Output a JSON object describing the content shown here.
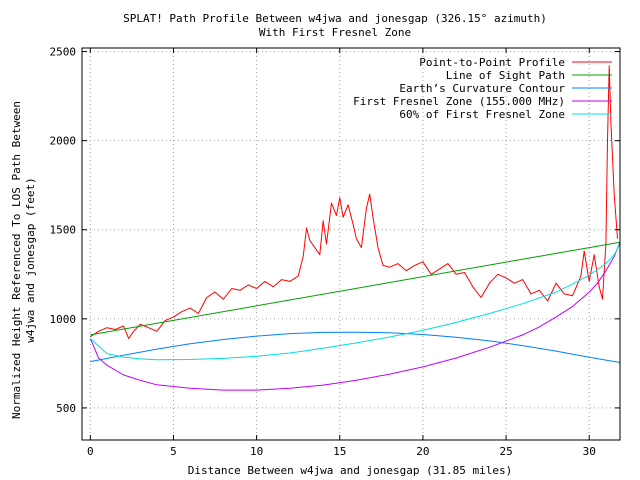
{
  "chart_data": {
    "type": "line",
    "title": "SPLAT! Path Profile Between w4jwa and jonesgap (326.15° azimuth)",
    "subtitle": "With First Fresnel Zone",
    "xlabel": "Distance Between w4jwa and jonesgap (31.85 miles)",
    "ylabel_line1": "Normalized Height Referenced To LOS Path Between",
    "ylabel_line2": "w4jwa and jonesgap (feet)",
    "xlim": [
      -0.5,
      31.85
    ],
    "ylim": [
      320,
      2520
    ],
    "xticks": [
      0,
      5,
      10,
      15,
      20,
      25,
      30
    ],
    "yticks": [
      500,
      1000,
      1500,
      2000,
      2500
    ],
    "grid": true,
    "legend_position": "top-right",
    "series": [
      {
        "name": "Point-to-Point Profile",
        "color": "#ff0000",
        "x": [
          0,
          0.5,
          1,
          1.5,
          2,
          2.3,
          2.6,
          3,
          3.5,
          4,
          4.5,
          5,
          5.5,
          6,
          6.5,
          7,
          7.5,
          8,
          8.5,
          9,
          9.5,
          10,
          10.5,
          11,
          11.5,
          12,
          12.5,
          12.8,
          13,
          13.2,
          13.5,
          13.8,
          14,
          14.2,
          14.5,
          14.8,
          15,
          15.2,
          15.5,
          15.8,
          16,
          16.3,
          16.6,
          16.8,
          17,
          17.3,
          17.6,
          18,
          18.5,
          19,
          19.5,
          20,
          20.5,
          21,
          21.5,
          22,
          22.5,
          23,
          23.5,
          24,
          24.5,
          25,
          25.5,
          26,
          26.5,
          27,
          27.5,
          28,
          28.5,
          29,
          29.5,
          29.7,
          30,
          30.3,
          30.6,
          30.8,
          31,
          31.1,
          31.2,
          31.3,
          31.5,
          31.7
        ],
        "y": [
          900,
          930,
          950,
          940,
          960,
          890,
          930,
          970,
          950,
          930,
          990,
          1010,
          1040,
          1060,
          1030,
          1120,
          1150,
          1110,
          1170,
          1160,
          1190,
          1170,
          1210,
          1180,
          1220,
          1210,
          1240,
          1350,
          1510,
          1440,
          1400,
          1360,
          1550,
          1420,
          1650,
          1580,
          1680,
          1570,
          1640,
          1530,
          1450,
          1400,
          1620,
          1700,
          1570,
          1400,
          1300,
          1290,
          1310,
          1270,
          1300,
          1320,
          1250,
          1280,
          1310,
          1250,
          1260,
          1180,
          1120,
          1200,
          1250,
          1230,
          1200,
          1220,
          1140,
          1160,
          1100,
          1200,
          1140,
          1130,
          1240,
          1380,
          1210,
          1360,
          1180,
          1110,
          1420,
          2000,
          2420,
          2100,
          1700,
          1450
        ]
      },
      {
        "name": "Line of Sight Path",
        "color": "#00a000",
        "x": [
          0,
          31.85
        ],
        "y": [
          910,
          1430
        ]
      },
      {
        "name": "Earth’s Curvature Contour",
        "color": "#0080ff",
        "x": [
          0,
          2,
          4,
          6,
          8,
          10,
          12,
          14,
          16,
          18,
          20,
          22,
          24,
          26,
          28,
          30,
          31.85
        ],
        "y": [
          760,
          796,
          830,
          860,
          884,
          903,
          917,
          924,
          925,
          922,
          912,
          897,
          876,
          850,
          819,
          784,
          755
        ]
      },
      {
        "name": "First Fresnel Zone (155.000 MHz)",
        "color": "#c000ff",
        "x": [
          0,
          0.5,
          1,
          2,
          3,
          4,
          6,
          8,
          10,
          12,
          14,
          16,
          18,
          20,
          22,
          24,
          26,
          27,
          28,
          29,
          30,
          30.5,
          31,
          31.5,
          31.85
        ],
        "y": [
          890,
          780,
          740,
          685,
          655,
          630,
          610,
          600,
          600,
          610,
          628,
          655,
          690,
          730,
          780,
          840,
          910,
          955,
          1010,
          1070,
          1150,
          1200,
          1270,
          1350,
          1430
        ]
      },
      {
        "name": "60% of First Fresnel Zone",
        "color": "#00e0e0",
        "x": [
          0,
          1,
          2,
          3,
          4,
          6,
          8,
          10,
          12,
          14,
          16,
          18,
          20,
          22,
          24,
          26,
          28,
          29,
          30,
          31,
          31.5,
          31.85
        ],
        "y": [
          890,
          805,
          785,
          775,
          770,
          772,
          778,
          790,
          808,
          835,
          865,
          898,
          935,
          980,
          1030,
          1085,
          1150,
          1195,
          1245,
          1310,
          1360,
          1420
        ]
      }
    ]
  }
}
